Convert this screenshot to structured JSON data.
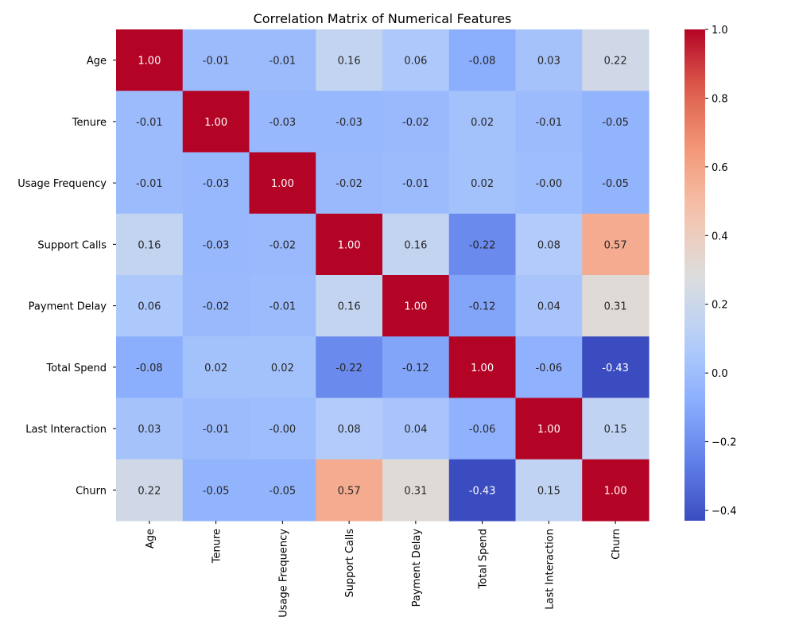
{
  "chart_data": {
    "type": "heatmap",
    "title": "Correlation Matrix of Numerical Features",
    "labels": [
      "Age",
      "Tenure",
      "Usage Frequency",
      "Support Calls",
      "Payment Delay",
      "Total Spend",
      "Last Interaction",
      "Churn"
    ],
    "matrix": [
      [
        1.0,
        -0.01,
        -0.01,
        0.16,
        0.06,
        -0.08,
        0.03,
        0.22
      ],
      [
        -0.01,
        1.0,
        -0.03,
        -0.03,
        -0.02,
        0.02,
        -0.01,
        -0.05
      ],
      [
        -0.01,
        -0.03,
        1.0,
        -0.02,
        -0.01,
        0.02,
        -0.0,
        -0.05
      ],
      [
        0.16,
        -0.03,
        -0.02,
        1.0,
        0.16,
        -0.22,
        0.08,
        0.57
      ],
      [
        0.06,
        -0.02,
        -0.01,
        0.16,
        1.0,
        -0.12,
        0.04,
        0.31
      ],
      [
        -0.08,
        0.02,
        0.02,
        -0.22,
        -0.12,
        1.0,
        -0.06,
        -0.43
      ],
      [
        0.03,
        -0.01,
        -0.0,
        0.08,
        0.04,
        -0.06,
        1.0,
        0.15
      ],
      [
        0.22,
        -0.05,
        -0.05,
        0.57,
        0.31,
        -0.43,
        0.15,
        1.0
      ]
    ],
    "colorbar": {
      "min": -0.43,
      "max": 1.0,
      "colormap": "coolwarm",
      "ticks": [
        -0.4,
        -0.2,
        0.0,
        0.2,
        0.4,
        0.6,
        0.8,
        1.0
      ],
      "tick_labels": [
        "−0.4",
        "−0.2",
        "0.0",
        "0.2",
        "0.4",
        "0.6",
        "0.8",
        "1.0"
      ]
    },
    "legend": "colorbar-right",
    "grid": false
  }
}
